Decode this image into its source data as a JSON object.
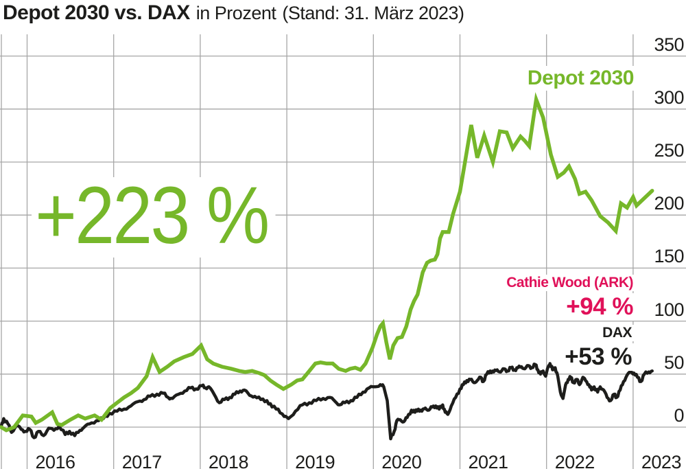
{
  "header": {
    "title": "Depot 2030 vs. DAX",
    "subtitle": "in Prozent",
    "stand": "(Stand: 31. März 2023)"
  },
  "colors": {
    "depot_green": "#76b72a",
    "ark_pink": "#e01159",
    "dax_black": "#1d1d1b",
    "grid": "#a6a6a6",
    "background": "#ffffff"
  },
  "annotations": {
    "depot_total_return": "+223 %",
    "depot_series_label": "Depot 2030",
    "ark_label": "Cathie Wood (ARK)",
    "ark_return": "+94 %",
    "dax_label": "DAX",
    "dax_return": "+53 %"
  },
  "chart_data": {
    "type": "line",
    "title": "Depot 2030 vs. DAX in Prozent (Stand: 31. März 2023)",
    "unit": "%",
    "grid": true,
    "legend_position": "inline-labels",
    "x_ticks": [
      2016,
      2017,
      2018,
      2019,
      2020,
      2021,
      2022,
      2023
    ],
    "y_ticks": [
      350,
      300,
      250,
      200,
      150,
      100,
      50,
      0
    ],
    "xlim": [
      2015.69,
      2023.3
    ],
    "ylim": [
      -40,
      370
    ],
    "series": [
      {
        "name": "Depot 2030",
        "color": "#76b72a",
        "end_value_label": "+223 %",
        "points": [
          [
            2015.7,
            0
          ],
          [
            2015.76,
            -3
          ],
          [
            2015.85,
            0
          ],
          [
            2015.95,
            11
          ],
          [
            2016.05,
            10
          ],
          [
            2016.1,
            4
          ],
          [
            2016.17,
            7
          ],
          [
            2016.29,
            14
          ],
          [
            2016.35,
            3
          ],
          [
            2016.4,
            2
          ],
          [
            2016.5,
            7
          ],
          [
            2016.59,
            11
          ],
          [
            2016.67,
            8
          ],
          [
            2016.78,
            11
          ],
          [
            2016.86,
            7
          ],
          [
            2016.96,
            18
          ],
          [
            2017.04,
            23
          ],
          [
            2017.12,
            28
          ],
          [
            2017.2,
            32
          ],
          [
            2017.28,
            37
          ],
          [
            2017.38,
            48
          ],
          [
            2017.45,
            66
          ],
          [
            2017.53,
            52
          ],
          [
            2017.62,
            57
          ],
          [
            2017.7,
            62
          ],
          [
            2017.81,
            66
          ],
          [
            2017.91,
            69
          ],
          [
            2018.01,
            77
          ],
          [
            2018.08,
            64
          ],
          [
            2018.15,
            60
          ],
          [
            2018.25,
            57
          ],
          [
            2018.36,
            55
          ],
          [
            2018.45,
            53
          ],
          [
            2018.52,
            52
          ],
          [
            2018.6,
            53
          ],
          [
            2018.68,
            51
          ],
          [
            2018.74,
            49
          ],
          [
            2018.81,
            44
          ],
          [
            2018.88,
            40
          ],
          [
            2018.96,
            36
          ],
          [
            2019.05,
            40
          ],
          [
            2019.12,
            44
          ],
          [
            2019.18,
            45
          ],
          [
            2019.25,
            52
          ],
          [
            2019.33,
            60
          ],
          [
            2019.39,
            61
          ],
          [
            2019.46,
            60
          ],
          [
            2019.53,
            60
          ],
          [
            2019.6,
            55
          ],
          [
            2019.68,
            53
          ],
          [
            2019.73,
            55
          ],
          [
            2019.79,
            56
          ],
          [
            2019.85,
            54
          ],
          [
            2019.91,
            60
          ],
          [
            2019.99,
            75
          ],
          [
            2020.04,
            87
          ],
          [
            2020.08,
            95
          ],
          [
            2020.11,
            98
          ],
          [
            2020.15,
            80
          ],
          [
            2020.19,
            64
          ],
          [
            2020.23,
            77
          ],
          [
            2020.28,
            84
          ],
          [
            2020.33,
            85
          ],
          [
            2020.38,
            95
          ],
          [
            2020.43,
            111
          ],
          [
            2020.47,
            119
          ],
          [
            2020.51,
            125
          ],
          [
            2020.57,
            146
          ],
          [
            2020.62,
            155
          ],
          [
            2020.66,
            157
          ],
          [
            2020.71,
            158
          ],
          [
            2020.74,
            163
          ],
          [
            2020.77,
            178
          ],
          [
            2020.8,
            184
          ],
          [
            2020.87,
            184
          ],
          [
            2020.92,
            201
          ],
          [
            2021.0,
            222
          ],
          [
            2021.05,
            246
          ],
          [
            2021.13,
            285
          ],
          [
            2021.2,
            254
          ],
          [
            2021.28,
            275
          ],
          [
            2021.38,
            250
          ],
          [
            2021.46,
            279
          ],
          [
            2021.54,
            278
          ],
          [
            2021.61,
            263
          ],
          [
            2021.7,
            274
          ],
          [
            2021.75,
            270
          ],
          [
            2021.8,
            265
          ],
          [
            2021.88,
            309
          ],
          [
            2021.96,
            292
          ],
          [
            2022.05,
            257
          ],
          [
            2022.13,
            236
          ],
          [
            2022.2,
            240
          ],
          [
            2022.26,
            246
          ],
          [
            2022.33,
            234
          ],
          [
            2022.38,
            220
          ],
          [
            2022.45,
            222
          ],
          [
            2022.52,
            214
          ],
          [
            2022.62,
            199
          ],
          [
            2022.71,
            193
          ],
          [
            2022.8,
            185
          ],
          [
            2022.86,
            211
          ],
          [
            2022.93,
            207
          ],
          [
            2023.0,
            217
          ],
          [
            2023.04,
            209
          ],
          [
            2023.22,
            223
          ]
        ]
      },
      {
        "name": "DAX",
        "color": "#1d1d1b",
        "end_value_label": "+53 %",
        "points": [
          [
            2015.7,
            0
          ],
          [
            2015.73,
            8
          ],
          [
            2015.78,
            3
          ],
          [
            2015.82,
            -5
          ],
          [
            2015.88,
            2
          ],
          [
            2015.93,
            -2
          ],
          [
            2015.98,
            -4
          ],
          [
            2016.03,
            -2
          ],
          [
            2016.08,
            -10
          ],
          [
            2016.13,
            -4
          ],
          [
            2016.19,
            -8
          ],
          [
            2016.25,
            -1
          ],
          [
            2016.31,
            -3
          ],
          [
            2016.37,
            1
          ],
          [
            2016.44,
            -7
          ],
          [
            2016.49,
            -4
          ],
          [
            2016.55,
            -8
          ],
          [
            2016.61,
            -3
          ],
          [
            2016.66,
            0
          ],
          [
            2016.72,
            3
          ],
          [
            2016.8,
            6
          ],
          [
            2016.88,
            8
          ],
          [
            2016.95,
            13
          ],
          [
            2017.04,
            15
          ],
          [
            2017.12,
            17
          ],
          [
            2017.2,
            20
          ],
          [
            2017.28,
            24
          ],
          [
            2017.35,
            26
          ],
          [
            2017.42,
            29
          ],
          [
            2017.5,
            31
          ],
          [
            2017.57,
            32
          ],
          [
            2017.63,
            28
          ],
          [
            2017.68,
            27
          ],
          [
            2017.75,
            31
          ],
          [
            2017.82,
            34
          ],
          [
            2017.89,
            37
          ],
          [
            2017.95,
            36
          ],
          [
            2018.02,
            39
          ],
          [
            2018.06,
            37
          ],
          [
            2018.1,
            38
          ],
          [
            2018.16,
            31
          ],
          [
            2018.22,
            23
          ],
          [
            2018.28,
            26
          ],
          [
            2018.34,
            28
          ],
          [
            2018.4,
            31
          ],
          [
            2018.46,
            34
          ],
          [
            2018.51,
            35
          ],
          [
            2018.57,
            30
          ],
          [
            2018.63,
            29
          ],
          [
            2018.7,
            26
          ],
          [
            2018.77,
            25
          ],
          [
            2018.83,
            19
          ],
          [
            2018.9,
            17
          ],
          [
            2018.97,
            10
          ],
          [
            2019.02,
            8
          ],
          [
            2019.1,
            15
          ],
          [
            2019.18,
            21
          ],
          [
            2019.26,
            23
          ],
          [
            2019.34,
            25
          ],
          [
            2019.42,
            27
          ],
          [
            2019.5,
            28
          ],
          [
            2019.56,
            24
          ],
          [
            2019.61,
            21
          ],
          [
            2019.67,
            23
          ],
          [
            2019.74,
            25
          ],
          [
            2019.81,
            28
          ],
          [
            2019.88,
            33
          ],
          [
            2019.95,
            37
          ],
          [
            2020.02,
            38
          ],
          [
            2020.08,
            40
          ],
          [
            2020.12,
            38
          ],
          [
            2020.16,
            25
          ],
          [
            2020.2,
            -11
          ],
          [
            2020.24,
            -4
          ],
          [
            2020.27,
            6
          ],
          [
            2020.31,
            7
          ],
          [
            2020.35,
            5
          ],
          [
            2020.39,
            9
          ],
          [
            2020.44,
            16
          ],
          [
            2020.48,
            14
          ],
          [
            2020.52,
            17
          ],
          [
            2020.56,
            15
          ],
          [
            2020.6,
            18
          ],
          [
            2020.64,
            16
          ],
          [
            2020.68,
            19
          ],
          [
            2020.72,
            20
          ],
          [
            2020.76,
            17
          ],
          [
            2020.8,
            21
          ],
          [
            2020.83,
            14
          ],
          [
            2020.86,
            12
          ],
          [
            2020.9,
            20
          ],
          [
            2020.95,
            28
          ],
          [
            2021.0,
            36
          ],
          [
            2021.04,
            40
          ],
          [
            2021.08,
            44
          ],
          [
            2021.12,
            45
          ],
          [
            2021.16,
            42
          ],
          [
            2021.2,
            44
          ],
          [
            2021.24,
            47
          ],
          [
            2021.27,
            43
          ],
          [
            2021.31,
            50
          ],
          [
            2021.35,
            53
          ],
          [
            2021.39,
            52
          ],
          [
            2021.43,
            54
          ],
          [
            2021.47,
            52
          ],
          [
            2021.51,
            55
          ],
          [
            2021.55,
            53
          ],
          [
            2021.59,
            56
          ],
          [
            2021.63,
            54
          ],
          [
            2021.67,
            56
          ],
          [
            2021.71,
            57
          ],
          [
            2021.75,
            55
          ],
          [
            2021.79,
            58
          ],
          [
            2021.83,
            56
          ],
          [
            2021.87,
            59
          ],
          [
            2021.9,
            54
          ],
          [
            2021.93,
            50
          ],
          [
            2021.96,
            53
          ],
          [
            2021.99,
            48
          ],
          [
            2022.02,
            57
          ],
          [
            2022.04,
            60
          ],
          [
            2022.07,
            54
          ],
          [
            2022.1,
            56
          ],
          [
            2022.13,
            48
          ],
          [
            2022.16,
            33
          ],
          [
            2022.19,
            27
          ],
          [
            2022.22,
            40
          ],
          [
            2022.25,
            45
          ],
          [
            2022.28,
            47
          ],
          [
            2022.31,
            42
          ],
          [
            2022.35,
            45
          ],
          [
            2022.38,
            40
          ],
          [
            2022.42,
            47
          ],
          [
            2022.45,
            44
          ],
          [
            2022.49,
            40
          ],
          [
            2022.52,
            35
          ],
          [
            2022.55,
            38
          ],
          [
            2022.59,
            33
          ],
          [
            2022.62,
            38
          ],
          [
            2022.66,
            35
          ],
          [
            2022.7,
            28
          ],
          [
            2022.74,
            25
          ],
          [
            2022.78,
            31
          ],
          [
            2022.81,
            28
          ],
          [
            2022.85,
            35
          ],
          [
            2022.89,
            43
          ],
          [
            2022.93,
            49
          ],
          [
            2022.97,
            52
          ],
          [
            2023.01,
            51
          ],
          [
            2023.05,
            47
          ],
          [
            2023.09,
            43
          ],
          [
            2023.13,
            50
          ],
          [
            2023.18,
            52
          ],
          [
            2023.22,
            53
          ]
        ]
      }
    ],
    "reference_annotation": {
      "name": "Cathie Wood (ARK)",
      "value_label": "+94 %"
    }
  }
}
